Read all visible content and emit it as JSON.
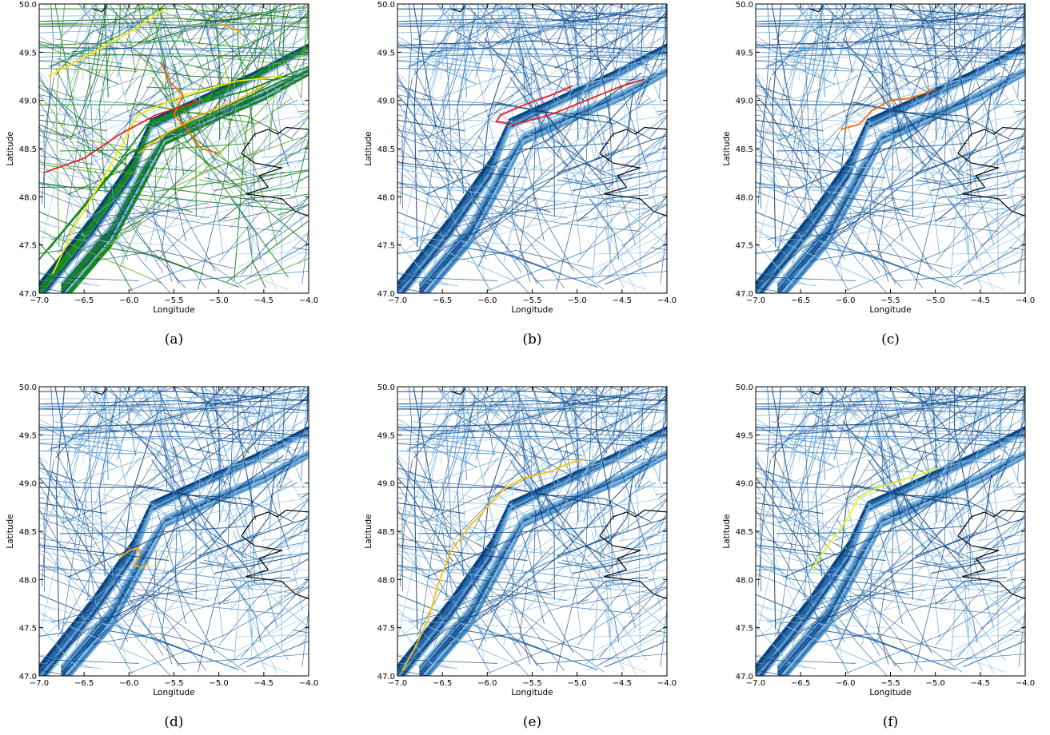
{
  "chart_data": [
    {
      "type": "line",
      "caption": "(a)",
      "xlabel": "Longitude",
      "ylabel": "Latitude",
      "xlim": [
        -7.0,
        -4.0
      ],
      "ylim": [
        47.0,
        50.0
      ],
      "xticks": [
        "−7.0",
        "−6.5",
        "−6.0",
        "−5.5",
        "−5.0",
        "−4.5",
        "−4.0"
      ],
      "yticks": [
        "47.0",
        "47.5",
        "48.0",
        "48.5",
        "49.0",
        "49.5",
        "50.0"
      ],
      "grid": false,
      "background_colors": [
        "#1f5fa0",
        "#0b3f7a",
        "#5b9bd0",
        "#8ec0e4"
      ],
      "highlight_colors": [
        "#178a1e",
        "#1e6f1e",
        "#6aa93a",
        "#ffe600",
        "#ffa500",
        "#ff6a00",
        "#e8201a"
      ],
      "highlight": [
        {
          "color": "#178a1e",
          "points": [
            [
              -7.0,
              47.35
            ],
            [
              -6.6,
              47.8
            ],
            [
              -6.2,
              48.25
            ],
            [
              -5.8,
              48.75
            ],
            [
              -5.3,
              48.95
            ],
            [
              -4.7,
              49.1
            ],
            [
              -4.0,
              49.35
            ]
          ]
        },
        {
          "color": "#178a1e",
          "points": [
            [
              -6.9,
              47.45
            ],
            [
              -6.5,
              47.9
            ],
            [
              -6.0,
              48.45
            ],
            [
              -5.6,
              48.65
            ],
            [
              -5.0,
              48.9
            ],
            [
              -4.3,
              49.2
            ],
            [
              -4.0,
              49.3
            ]
          ]
        },
        {
          "color": "#ffe600",
          "points": [
            [
              -6.85,
              47.2
            ],
            [
              -6.6,
              47.7
            ],
            [
              -6.25,
              48.25
            ],
            [
              -5.9,
              48.85
            ],
            [
              -5.4,
              49.05
            ],
            [
              -4.8,
              49.2
            ],
            [
              -4.3,
              49.25
            ]
          ]
        },
        {
          "color": "#ffe600",
          "points": [
            [
              -6.9,
              49.25
            ],
            [
              -6.5,
              49.45
            ],
            [
              -6.0,
              49.7
            ],
            [
              -5.6,
              49.95
            ]
          ]
        },
        {
          "color": "#ffa500",
          "points": [
            [
              -5.9,
              48.45
            ],
            [
              -5.6,
              48.65
            ],
            [
              -5.2,
              48.85
            ],
            [
              -4.8,
              49.0
            ],
            [
              -4.5,
              49.15
            ]
          ]
        },
        {
          "color": "#ff6a00",
          "points": [
            [
              -5.65,
              49.4
            ],
            [
              -5.55,
              49.2
            ],
            [
              -5.4,
              49.05
            ],
            [
              -5.5,
              48.85
            ],
            [
              -5.35,
              48.7
            ],
            [
              -5.2,
              48.5
            ],
            [
              -5.0,
              48.45
            ]
          ]
        },
        {
          "color": "#e8201a",
          "points": [
            [
              -6.95,
              48.25
            ],
            [
              -6.5,
              48.4
            ],
            [
              -6.1,
              48.65
            ],
            [
              -5.7,
              48.85
            ],
            [
              -5.2,
              49.0
            ]
          ]
        },
        {
          "color": "#ffa500",
          "points": [
            [
              -5.0,
              49.8
            ],
            [
              -4.85,
              49.75
            ],
            [
              -4.75,
              49.7
            ]
          ]
        }
      ]
    },
    {
      "type": "line",
      "caption": "(b)",
      "xlabel": "Longitude",
      "ylabel": "Latitude",
      "xlim": [
        -7.0,
        -4.0
      ],
      "ylim": [
        47.0,
        50.0
      ],
      "xticks": [
        "−7.0",
        "−6.5",
        "−6.0",
        "−5.5",
        "−5.0",
        "−4.5",
        "−4.0"
      ],
      "yticks": [
        "47.0",
        "47.5",
        "48.0",
        "48.5",
        "49.0",
        "49.5",
        "50.0"
      ],
      "grid": false,
      "background_colors": [
        "#1f5fa0",
        "#0b3f7a",
        "#5b9bd0",
        "#8ec0e4"
      ],
      "highlight": [
        {
          "color": "#e8201a",
          "points": [
            [
              -5.05,
              49.15
            ],
            [
              -5.3,
              49.05
            ],
            [
              -5.6,
              48.95
            ],
            [
              -5.85,
              48.85
            ],
            [
              -5.9,
              48.78
            ],
            [
              -5.7,
              48.75
            ],
            [
              -5.3,
              48.85
            ],
            [
              -4.9,
              49.0
            ],
            [
              -4.5,
              49.15
            ],
            [
              -4.25,
              49.22
            ]
          ]
        }
      ]
    },
    {
      "type": "line",
      "caption": "(c)",
      "xlabel": "Longitude",
      "ylabel": "Latitude",
      "xlim": [
        -7.0,
        -4.0
      ],
      "ylim": [
        47.0,
        50.0
      ],
      "xticks": [
        "−7.0",
        "−6.5",
        "−6.0",
        "−5.5",
        "−5.0",
        "−4.5",
        "−4.0"
      ],
      "yticks": [
        "47.0",
        "47.5",
        "48.0",
        "48.5",
        "49.0",
        "49.5",
        "50.0"
      ],
      "grid": false,
      "background_colors": [
        "#1f5fa0",
        "#0b3f7a",
        "#5b9bd0",
        "#8ec0e4"
      ],
      "highlight": [
        {
          "color": "#ff6a00",
          "points": [
            [
              -6.05,
              48.7
            ],
            [
              -5.85,
              48.75
            ],
            [
              -5.7,
              48.9
            ],
            [
              -5.5,
              49.0
            ],
            [
              -5.3,
              49.02
            ],
            [
              -5.1,
              49.08
            ],
            [
              -5.0,
              49.12
            ]
          ]
        }
      ]
    },
    {
      "type": "line",
      "caption": "(d)",
      "xlabel": "Longitude",
      "ylabel": "Latitude",
      "xlim": [
        -7.0,
        -4.0
      ],
      "ylim": [
        47.0,
        50.0
      ],
      "xticks": [
        "−7.0",
        "−6.5",
        "−6.0",
        "−5.5",
        "−5.0",
        "−4.5",
        "−4.0"
      ],
      "yticks": [
        "47.0",
        "47.5",
        "48.0",
        "48.5",
        "49.0",
        "49.5",
        "50.0"
      ],
      "grid": false,
      "background_colors": [
        "#1f5fa0",
        "#0b3f7a",
        "#5b9bd0",
        "#8ec0e4"
      ],
      "highlight": [
        {
          "color": "#ffa500",
          "points": [
            [
              -6.1,
              48.22
            ],
            [
              -6.0,
              48.3
            ],
            [
              -5.9,
              48.33
            ],
            [
              -5.88,
              48.25
            ],
            [
              -5.95,
              48.15
            ],
            [
              -5.85,
              48.12
            ],
            [
              -5.78,
              48.18
            ]
          ]
        }
      ]
    },
    {
      "type": "line",
      "caption": "(e)",
      "xlabel": "Longitude",
      "ylabel": "Latitude",
      "xlim": [
        -7.0,
        -4.0
      ],
      "ylim": [
        47.0,
        50.0
      ],
      "xticks": [
        "−7.0",
        "−6.5",
        "−6.0",
        "−5.5",
        "−5.0",
        "−4.5",
        "−4.0"
      ],
      "yticks": [
        "47.0",
        "47.5",
        "48.0",
        "48.5",
        "49.0",
        "49.5",
        "50.0"
      ],
      "grid": false,
      "background_colors": [
        "#1f5fa0",
        "#0b3f7a",
        "#5b9bd0",
        "#8ec0e4"
      ],
      "highlight": [
        {
          "color": "#ffc000",
          "points": [
            [
              -6.95,
              47.05
            ],
            [
              -6.8,
              47.3
            ],
            [
              -6.65,
              47.6
            ],
            [
              -6.55,
              47.95
            ],
            [
              -6.4,
              48.3
            ],
            [
              -6.2,
              48.55
            ],
            [
              -5.95,
              48.8
            ],
            [
              -5.8,
              48.95
            ],
            [
              -5.6,
              49.05
            ],
            [
              -5.3,
              49.12
            ],
            [
              -5.1,
              49.2
            ],
            [
              -4.92,
              49.25
            ]
          ]
        }
      ]
    },
    {
      "type": "line",
      "caption": "(f)",
      "xlabel": "Longitude",
      "ylabel": "Latitude",
      "xlim": [
        -7.0,
        -4.0
      ],
      "ylim": [
        47.0,
        50.0
      ],
      "xticks": [
        "−7.0",
        "−6.5",
        "−6.0",
        "−5.5",
        "−5.0",
        "−4.5",
        "−4.0"
      ],
      "yticks": [
        "47.0",
        "47.5",
        "48.0",
        "48.5",
        "49.0",
        "49.5",
        "50.0"
      ],
      "grid": false,
      "background_colors": [
        "#1f5fa0",
        "#0b3f7a",
        "#5b9bd0",
        "#8ec0e4"
      ],
      "highlight": [
        {
          "color": "#f2f21a",
          "points": [
            [
              -6.38,
              48.1
            ],
            [
              -6.2,
              48.35
            ],
            [
              -6.0,
              48.6
            ],
            [
              -5.85,
              48.85
            ],
            [
              -5.65,
              48.95
            ],
            [
              -5.4,
              49.02
            ],
            [
              -5.2,
              49.08
            ],
            [
              -4.98,
              49.15
            ]
          ]
        }
      ]
    }
  ]
}
